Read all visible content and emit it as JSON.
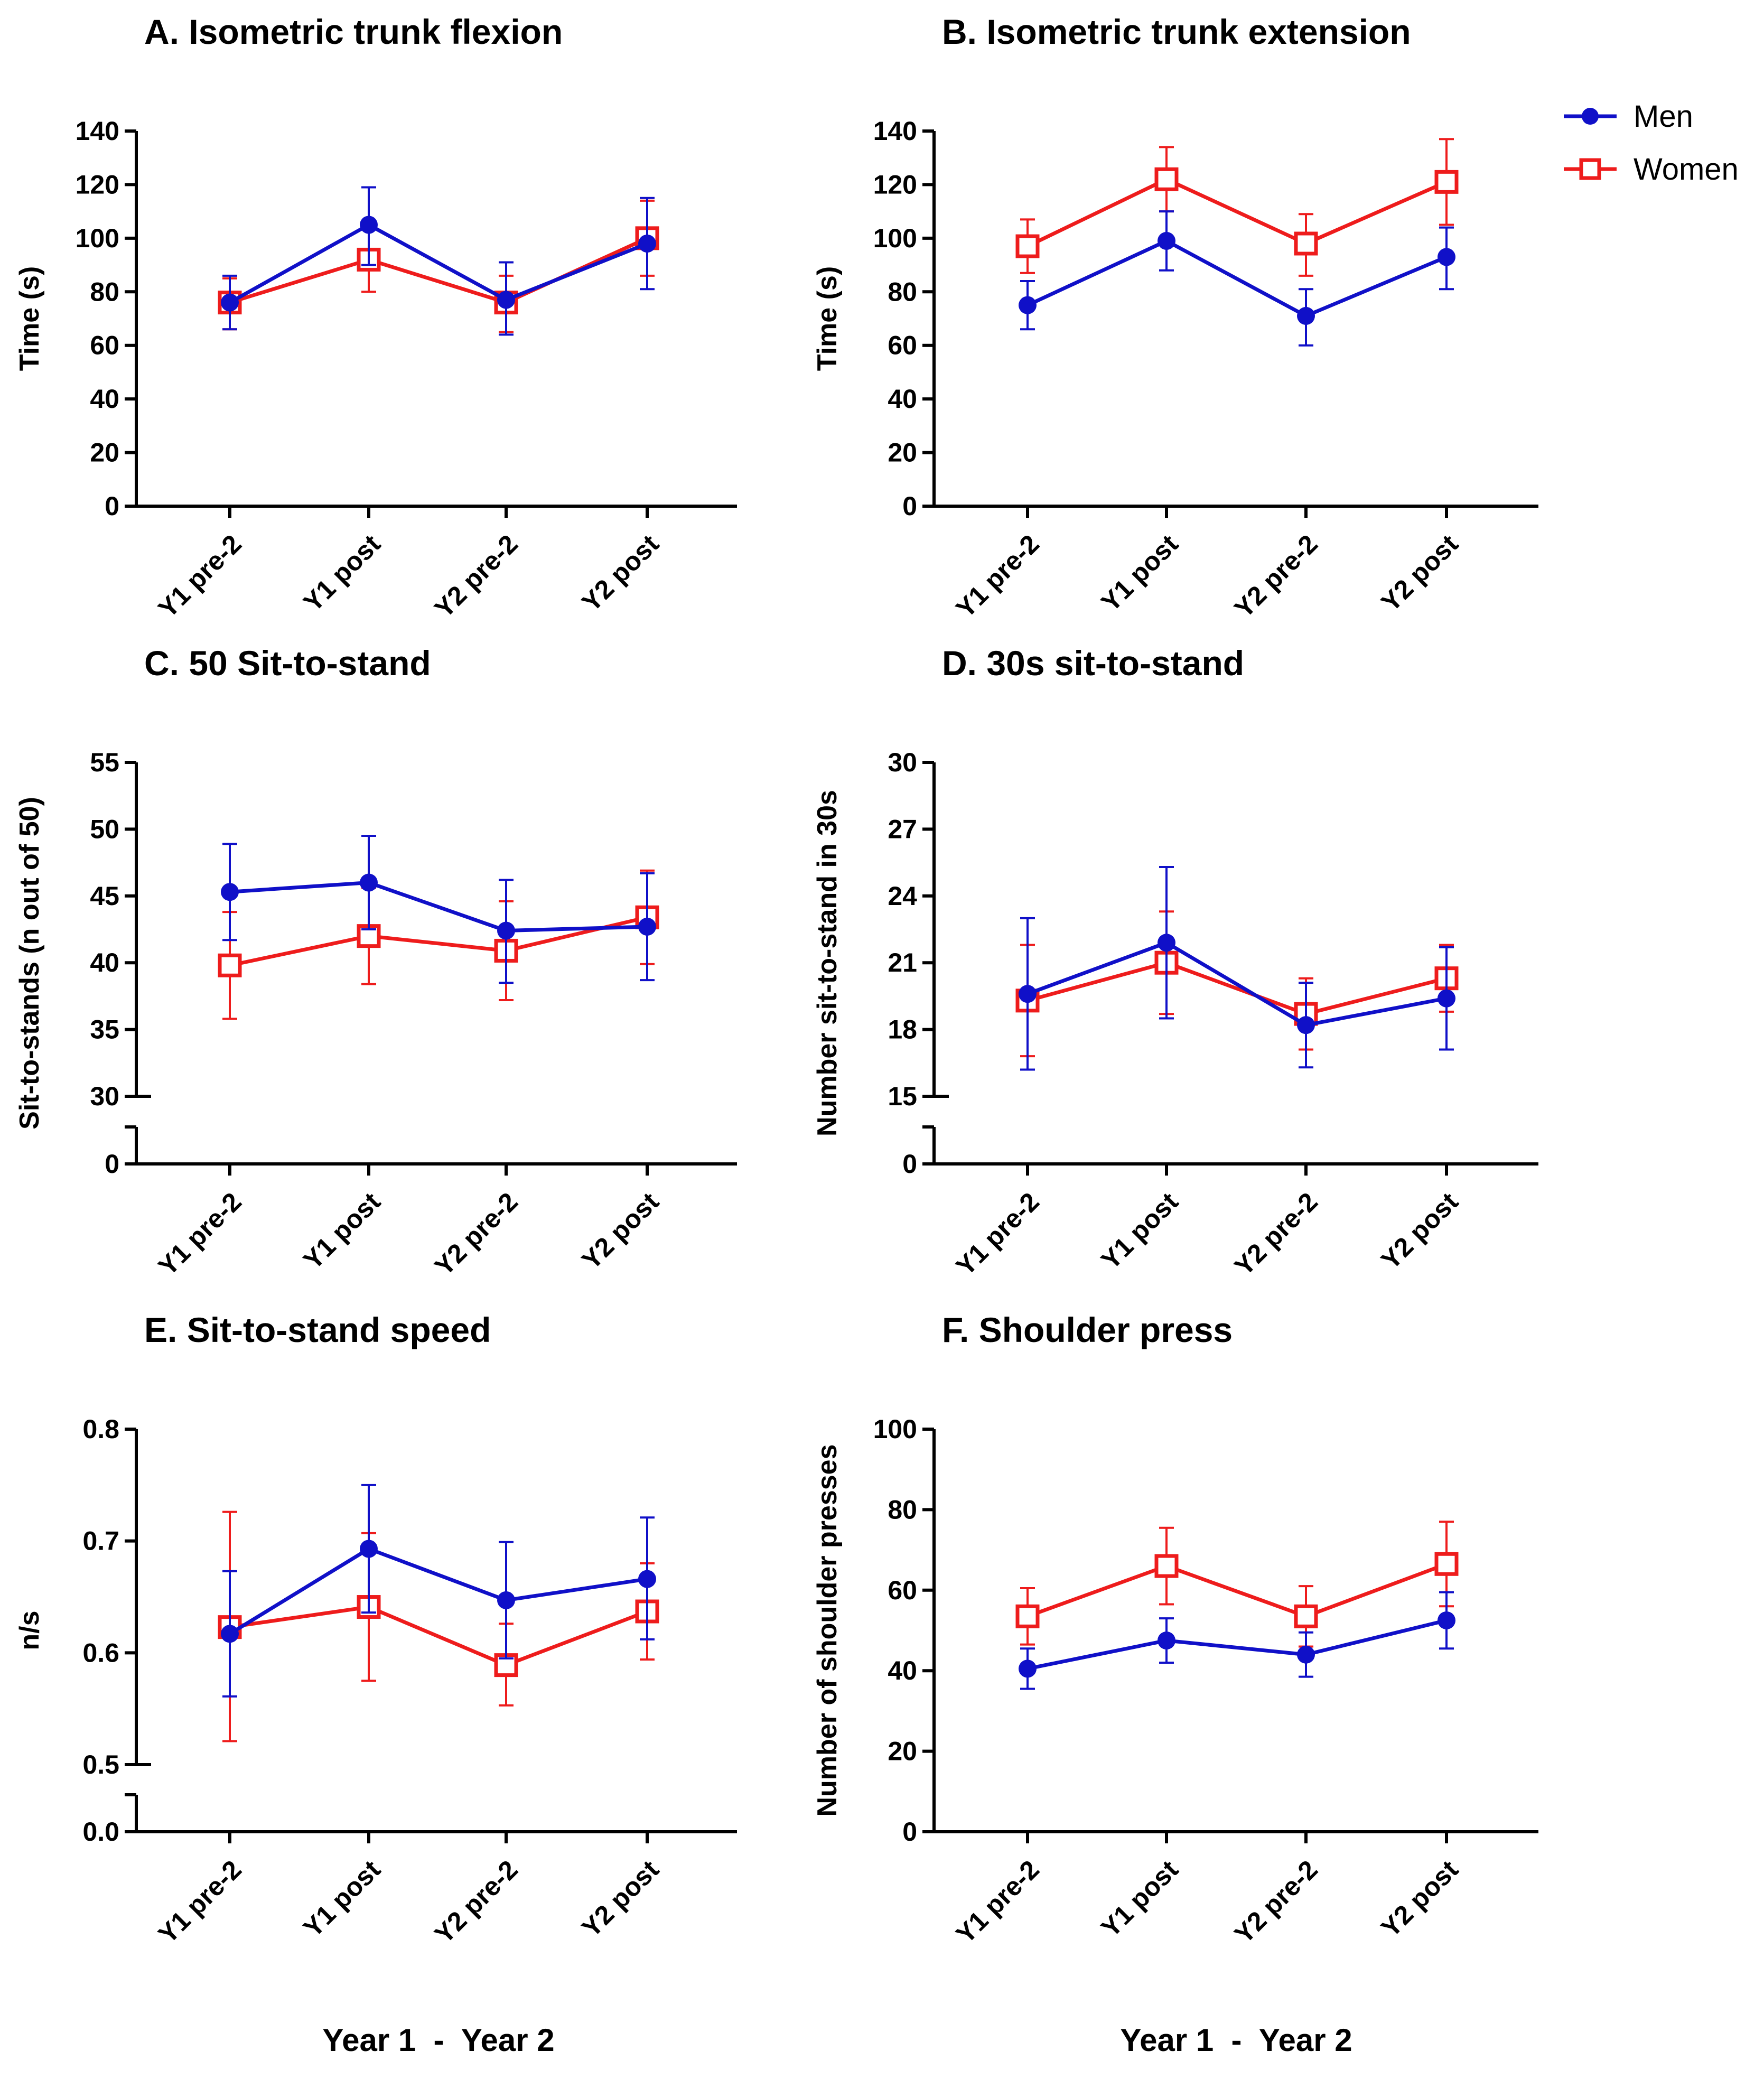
{
  "chart_data": {
    "type": "line",
    "categories": [
      "Y1 pre-2",
      "Y1 post",
      "Y2 pre-2",
      "Y2 post"
    ],
    "legend": {
      "position": "top-right",
      "entries": [
        {
          "name": "Men",
          "color": "#1010c8",
          "marker": "filled-circle"
        },
        {
          "name": "Women",
          "color": "#ee1c1c",
          "marker": "open-square"
        }
      ]
    },
    "xlabels": [
      "Year 1  -  Year 2",
      "Year 1  -  Year 2"
    ],
    "panels": [
      {
        "title": "A. Isometric trunk flexion",
        "ylabel": "Time (s)",
        "ylim": [
          0,
          140
        ],
        "yticks": [
          0,
          20,
          40,
          60,
          80,
          100,
          120,
          140
        ],
        "ytick_labels": [
          "0",
          "20",
          "40",
          "60",
          "80",
          "100",
          "120",
          "140"
        ],
        "series": [
          {
            "name": "Men",
            "values": [
              76,
              105,
              77,
              98
            ],
            "err_low": [
              66,
              90,
              64,
              81
            ],
            "err_high": [
              86,
              119,
              91,
              115
            ]
          },
          {
            "name": "Women",
            "values": [
              76,
              92,
              76,
              100
            ],
            "err_low": [
              66,
              80,
              65,
              86
            ],
            "err_high": [
              85,
              104,
              86,
              114
            ]
          }
        ]
      },
      {
        "title": "B. Isometric trunk extension",
        "ylabel": "Time (s)",
        "ylim": [
          0,
          140
        ],
        "yticks": [
          0,
          20,
          40,
          60,
          80,
          100,
          120,
          140
        ],
        "ytick_labels": [
          "0",
          "20",
          "40",
          "60",
          "80",
          "100",
          "120",
          "140"
        ],
        "series": [
          {
            "name": "Men",
            "values": [
              75,
              99,
              71,
              93
            ],
            "err_low": [
              66,
              88,
              60,
              81
            ],
            "err_high": [
              84,
              110,
              81,
              104
            ]
          },
          {
            "name": "Women",
            "values": [
              97,
              122,
              98,
              121
            ],
            "err_low": [
              87,
              110,
              86,
              105
            ],
            "err_high": [
              107,
              134,
              109,
              137
            ]
          }
        ]
      },
      {
        "title": "C. 50 Sit-to-stand",
        "ylabel": "Sit-to-stands (n out of 50)",
        "ylim": [
          30,
          55
        ],
        "yticks": [
          30,
          35,
          40,
          45,
          50,
          55
        ],
        "ytick_labels": [
          "30",
          "35",
          "40",
          "45",
          "50",
          "55"
        ],
        "broken_axis_label": "0",
        "series": [
          {
            "name": "Men",
            "values": [
              45.3,
              46.0,
              42.4,
              42.7
            ],
            "err_low": [
              41.7,
              42.5,
              38.5,
              38.7
            ],
            "err_high": [
              48.9,
              49.5,
              46.2,
              46.7
            ]
          },
          {
            "name": "Women",
            "values": [
              39.8,
              42.0,
              40.9,
              43.4
            ],
            "err_low": [
              35.8,
              38.4,
              37.2,
              39.9
            ],
            "err_high": [
              43.8,
              45.6,
              44.6,
              46.9
            ]
          }
        ]
      },
      {
        "title": "D. 30s sit-to-stand",
        "ylabel": "Number sit-to-stand in 30s",
        "ylim": [
          15,
          30
        ],
        "yticks": [
          15,
          18,
          21,
          24,
          27,
          30
        ],
        "ytick_labels": [
          "15",
          "18",
          "21",
          "24",
          "27",
          "30"
        ],
        "broken_axis_label": "0",
        "series": [
          {
            "name": "Men",
            "values": [
              19.6,
              21.9,
              18.2,
              19.4
            ],
            "err_low": [
              16.2,
              18.5,
              16.3,
              17.1
            ],
            "err_high": [
              23.0,
              25.3,
              20.1,
              21.7
            ]
          },
          {
            "name": "Women",
            "values": [
              19.3,
              21.0,
              18.7,
              20.3
            ],
            "err_low": [
              16.8,
              18.7,
              17.1,
              18.8
            ],
            "err_high": [
              21.8,
              23.3,
              20.3,
              21.8
            ]
          }
        ]
      },
      {
        "title": "E. Sit-to-stand speed",
        "ylabel": "n/s",
        "ylim": [
          0.5,
          0.8
        ],
        "yticks": [
          0.5,
          0.6,
          0.7,
          0.8
        ],
        "ytick_labels": [
          "0.5",
          "0.6",
          "0.7",
          "0.8"
        ],
        "broken_axis_label": "0.0",
        "series": [
          {
            "name": "Men",
            "values": [
              0.617,
              0.693,
              0.647,
              0.666
            ],
            "err_low": [
              0.561,
              0.636,
              0.595,
              0.612
            ],
            "err_high": [
              0.673,
              0.75,
              0.699,
              0.721
            ]
          },
          {
            "name": "Women",
            "values": [
              0.623,
              0.641,
              0.589,
              0.637
            ],
            "err_low": [
              0.521,
              0.575,
              0.553,
              0.594
            ],
            "err_high": [
              0.726,
              0.707,
              0.626,
              0.68
            ]
          }
        ]
      },
      {
        "title": "F. Shoulder press",
        "ylabel": "Number of shoulder presses",
        "ylim": [
          0,
          100
        ],
        "yticks": [
          0,
          20,
          40,
          60,
          80,
          100
        ],
        "ytick_labels": [
          "0",
          "20",
          "40",
          "60",
          "80",
          "100"
        ],
        "series": [
          {
            "name": "Men",
            "values": [
              40.5,
              47.5,
              44.0,
              52.5
            ],
            "err_low": [
              35.5,
              42.0,
              38.5,
              45.5
            ],
            "err_high": [
              45.5,
              53.0,
              49.5,
              59.5
            ]
          },
          {
            "name": "Women",
            "values": [
              53.5,
              66.0,
              53.5,
              66.5
            ],
            "err_low": [
              46.5,
              56.5,
              46.0,
              56.0
            ],
            "err_high": [
              60.5,
              75.5,
              61.0,
              77.0
            ]
          }
        ]
      }
    ]
  }
}
